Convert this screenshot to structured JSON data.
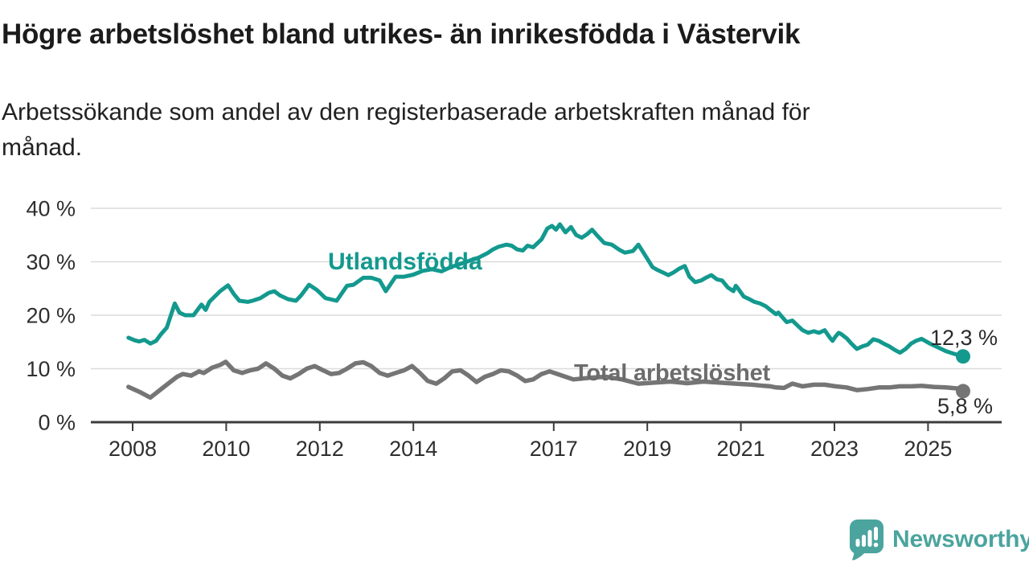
{
  "header": {
    "title": "Högre arbetslöshet bland utrikes- än inrikesfödda i Västervik",
    "subtitle": "Arbetssökande som andel av den registerbaserade arbetskraften månad för månad.",
    "subtitle_line1": "Arbetssökande som andel av den registerbaserade arbetskraften månad för",
    "subtitle_line2": "månad."
  },
  "chart_data": {
    "type": "line",
    "unit": "%",
    "grid": true,
    "legend_position": "inline-labels",
    "colors": {
      "axis": "#3c3c3c",
      "grid": "#dbdbdb",
      "tick_text": "#2f2f2f"
    },
    "x_axis": {
      "range": [
        2007.6,
        2026.2
      ],
      "ticks": [
        2008,
        2010,
        2012,
        2014,
        2017,
        2019,
        2021,
        2023,
        2025
      ],
      "tick_labels": [
        "2008",
        "2010",
        "2012",
        "2014",
        "2017",
        "2019",
        "2021",
        "2023",
        "2025"
      ]
    },
    "y_axis": {
      "range": [
        0,
        40
      ],
      "ticks": [
        0,
        10,
        20,
        30,
        40
      ],
      "tick_labels": [
        "0 %",
        "10 %",
        "20 %",
        "30 %",
        "40 %"
      ]
    },
    "series": [
      {
        "name": "Utlandsfödda",
        "color": "#13998e",
        "end_label": "12,3 %",
        "end_value": 12.3,
        "points": [
          [
            2007.91,
            15.8
          ],
          [
            2008.05,
            15.3
          ],
          [
            2008.14,
            15.1
          ],
          [
            2008.25,
            15.4
          ],
          [
            2008.38,
            14.7
          ],
          [
            2008.5,
            15.2
          ],
          [
            2008.61,
            16.5
          ],
          [
            2008.73,
            17.7
          ],
          [
            2008.9,
            22.2
          ],
          [
            2009.0,
            20.5
          ],
          [
            2009.12,
            20.0
          ],
          [
            2009.3,
            20.0
          ],
          [
            2009.47,
            22.0
          ],
          [
            2009.56,
            21.0
          ],
          [
            2009.64,
            22.5
          ],
          [
            2009.87,
            24.5
          ],
          [
            2010.04,
            25.6
          ],
          [
            2010.16,
            24.0
          ],
          [
            2010.28,
            22.7
          ],
          [
            2010.46,
            22.5
          ],
          [
            2010.56,
            22.7
          ],
          [
            2010.73,
            23.2
          ],
          [
            2010.91,
            24.2
          ],
          [
            2011.03,
            24.5
          ],
          [
            2011.15,
            23.7
          ],
          [
            2011.32,
            23.0
          ],
          [
            2011.49,
            22.7
          ],
          [
            2011.6,
            23.7
          ],
          [
            2011.77,
            25.7
          ],
          [
            2011.94,
            24.7
          ],
          [
            2012.12,
            23.2
          ],
          [
            2012.36,
            22.7
          ],
          [
            2012.58,
            25.5
          ],
          [
            2012.72,
            25.7
          ],
          [
            2012.93,
            27.0
          ],
          [
            2013.1,
            27.0
          ],
          [
            2013.28,
            26.5
          ],
          [
            2013.41,
            24.5
          ],
          [
            2013.62,
            27.2
          ],
          [
            2013.8,
            27.2
          ],
          [
            2014.0,
            27.6
          ],
          [
            2014.2,
            28.3
          ],
          [
            2014.4,
            28.6
          ],
          [
            2014.6,
            28.2
          ],
          [
            2014.8,
            29.0
          ],
          [
            2015.0,
            29.6
          ],
          [
            2015.2,
            30.2
          ],
          [
            2015.4,
            30.8
          ],
          [
            2015.58,
            31.6
          ],
          [
            2015.7,
            32.3
          ],
          [
            2015.82,
            32.8
          ],
          [
            2015.99,
            33.2
          ],
          [
            2016.1,
            33.0
          ],
          [
            2016.22,
            32.3
          ],
          [
            2016.34,
            32.1
          ],
          [
            2016.44,
            33.0
          ],
          [
            2016.56,
            32.7
          ],
          [
            2016.74,
            34.2
          ],
          [
            2016.86,
            36.2
          ],
          [
            2016.96,
            36.7
          ],
          [
            2017.05,
            36.0
          ],
          [
            2017.13,
            37.0
          ],
          [
            2017.25,
            35.5
          ],
          [
            2017.37,
            36.5
          ],
          [
            2017.48,
            35.0
          ],
          [
            2017.6,
            34.5
          ],
          [
            2017.72,
            35.2
          ],
          [
            2017.82,
            36.0
          ],
          [
            2017.94,
            34.8
          ],
          [
            2018.08,
            33.5
          ],
          [
            2018.24,
            33.2
          ],
          [
            2018.41,
            32.2
          ],
          [
            2018.52,
            31.7
          ],
          [
            2018.69,
            32.0
          ],
          [
            2018.81,
            33.2
          ],
          [
            2018.99,
            30.7
          ],
          [
            2019.11,
            29.0
          ],
          [
            2019.21,
            28.5
          ],
          [
            2019.33,
            28.0
          ],
          [
            2019.45,
            27.5
          ],
          [
            2019.56,
            28.0
          ],
          [
            2019.68,
            28.7
          ],
          [
            2019.8,
            29.2
          ],
          [
            2019.9,
            27.2
          ],
          [
            2020.02,
            26.2
          ],
          [
            2020.15,
            26.5
          ],
          [
            2020.25,
            27.0
          ],
          [
            2020.37,
            27.5
          ],
          [
            2020.49,
            26.7
          ],
          [
            2020.6,
            26.5
          ],
          [
            2020.72,
            25.2
          ],
          [
            2020.84,
            24.5
          ],
          [
            2020.89,
            25.5
          ],
          [
            2020.94,
            25.0
          ],
          [
            2021.06,
            23.5
          ],
          [
            2021.18,
            23.0
          ],
          [
            2021.29,
            22.5
          ],
          [
            2021.41,
            22.2
          ],
          [
            2021.53,
            21.7
          ],
          [
            2021.63,
            21.0
          ],
          [
            2021.75,
            20.2
          ],
          [
            2021.8,
            20.5
          ],
          [
            2021.87,
            19.8
          ],
          [
            2021.98,
            18.7
          ],
          [
            2022.1,
            19.0
          ],
          [
            2022.22,
            18.0
          ],
          [
            2022.32,
            17.2
          ],
          [
            2022.44,
            16.7
          ],
          [
            2022.56,
            17.0
          ],
          [
            2022.67,
            16.7
          ],
          [
            2022.79,
            17.2
          ],
          [
            2022.91,
            15.7
          ],
          [
            2022.96,
            15.2
          ],
          [
            2023.02,
            16.0
          ],
          [
            2023.09,
            16.7
          ],
          [
            2023.14,
            16.5
          ],
          [
            2023.26,
            15.7
          ],
          [
            2023.36,
            14.7
          ],
          [
            2023.48,
            13.7
          ],
          [
            2023.6,
            14.2
          ],
          [
            2023.71,
            14.5
          ],
          [
            2023.83,
            15.5
          ],
          [
            2023.95,
            15.2
          ],
          [
            2024.05,
            14.7
          ],
          [
            2024.17,
            14.2
          ],
          [
            2024.29,
            13.5
          ],
          [
            2024.4,
            13.0
          ],
          [
            2024.52,
            13.7
          ],
          [
            2024.64,
            14.7
          ],
          [
            2024.74,
            15.2
          ],
          [
            2024.86,
            15.6
          ],
          [
            2025.04,
            14.7
          ],
          [
            2025.21,
            14.0
          ],
          [
            2025.38,
            13.3
          ],
          [
            2025.55,
            12.8
          ],
          [
            2025.67,
            12.5
          ],
          [
            2025.75,
            12.3
          ]
        ]
      },
      {
        "name": "Total arbetslöshet",
        "color": "#757575",
        "end_label": "5,8 %",
        "end_value": 5.8,
        "points": [
          [
            2007.91,
            6.6
          ],
          [
            2008.14,
            5.7
          ],
          [
            2008.38,
            4.6
          ],
          [
            2008.61,
            6.2
          ],
          [
            2008.83,
            7.7
          ],
          [
            2008.95,
            8.5
          ],
          [
            2009.07,
            9.0
          ],
          [
            2009.25,
            8.7
          ],
          [
            2009.42,
            9.5
          ],
          [
            2009.52,
            9.2
          ],
          [
            2009.7,
            10.2
          ],
          [
            2009.87,
            10.7
          ],
          [
            2009.99,
            11.3
          ],
          [
            2010.16,
            9.7
          ],
          [
            2010.34,
            9.2
          ],
          [
            2010.51,
            9.7
          ],
          [
            2010.68,
            10.0
          ],
          [
            2010.85,
            11.0
          ],
          [
            2011.03,
            10.0
          ],
          [
            2011.2,
            8.7
          ],
          [
            2011.37,
            8.2
          ],
          [
            2011.55,
            9.0
          ],
          [
            2011.72,
            10.0
          ],
          [
            2011.89,
            10.5
          ],
          [
            2012.07,
            9.7
          ],
          [
            2012.24,
            9.0
          ],
          [
            2012.41,
            9.2
          ],
          [
            2012.58,
            10.0
          ],
          [
            2012.76,
            11.0
          ],
          [
            2012.93,
            11.2
          ],
          [
            2013.1,
            10.5
          ],
          [
            2013.28,
            9.2
          ],
          [
            2013.45,
            8.7
          ],
          [
            2013.62,
            9.2
          ],
          [
            2013.8,
            9.7
          ],
          [
            2013.97,
            10.5
          ],
          [
            2014.14,
            9.2
          ],
          [
            2014.31,
            7.7
          ],
          [
            2014.49,
            7.2
          ],
          [
            2014.66,
            8.2
          ],
          [
            2014.83,
            9.5
          ],
          [
            2015.01,
            9.7
          ],
          [
            2015.18,
            8.7
          ],
          [
            2015.35,
            7.5
          ],
          [
            2015.53,
            8.5
          ],
          [
            2015.7,
            9.0
          ],
          [
            2015.87,
            9.7
          ],
          [
            2016.04,
            9.5
          ],
          [
            2016.22,
            8.7
          ],
          [
            2016.39,
            7.7
          ],
          [
            2016.56,
            8.0
          ],
          [
            2016.74,
            9.0
          ],
          [
            2016.91,
            9.5
          ],
          [
            2017.08,
            9.0
          ],
          [
            2017.25,
            8.5
          ],
          [
            2017.42,
            8.0
          ],
          [
            2017.77,
            8.3
          ],
          [
            2018.11,
            8.5
          ],
          [
            2018.46,
            8.0
          ],
          [
            2018.81,
            7.2
          ],
          [
            2019.16,
            7.4
          ],
          [
            2019.5,
            7.6
          ],
          [
            2019.85,
            7.3
          ],
          [
            2020.2,
            7.6
          ],
          [
            2020.54,
            7.4
          ],
          [
            2020.89,
            7.2
          ],
          [
            2021.24,
            7.0
          ],
          [
            2021.49,
            6.8
          ],
          [
            2021.63,
            6.7
          ],
          [
            2021.75,
            6.5
          ],
          [
            2021.92,
            6.4
          ],
          [
            2022.1,
            7.2
          ],
          [
            2022.32,
            6.7
          ],
          [
            2022.56,
            7.0
          ],
          [
            2022.79,
            7.0
          ],
          [
            2023.02,
            6.7
          ],
          [
            2023.26,
            6.5
          ],
          [
            2023.48,
            6.0
          ],
          [
            2023.71,
            6.2
          ],
          [
            2023.95,
            6.5
          ],
          [
            2024.17,
            6.5
          ],
          [
            2024.4,
            6.7
          ],
          [
            2024.64,
            6.7
          ],
          [
            2024.86,
            6.8
          ],
          [
            2025.12,
            6.6
          ],
          [
            2025.38,
            6.5
          ],
          [
            2025.64,
            6.3
          ],
          [
            2025.75,
            5.8
          ]
        ]
      }
    ]
  },
  "footer": {
    "brand": "Newsworthy",
    "brand_color": "#4ba49e",
    "logo_icon": "newsworthy-speech-bubble-bar-chart-icon"
  }
}
